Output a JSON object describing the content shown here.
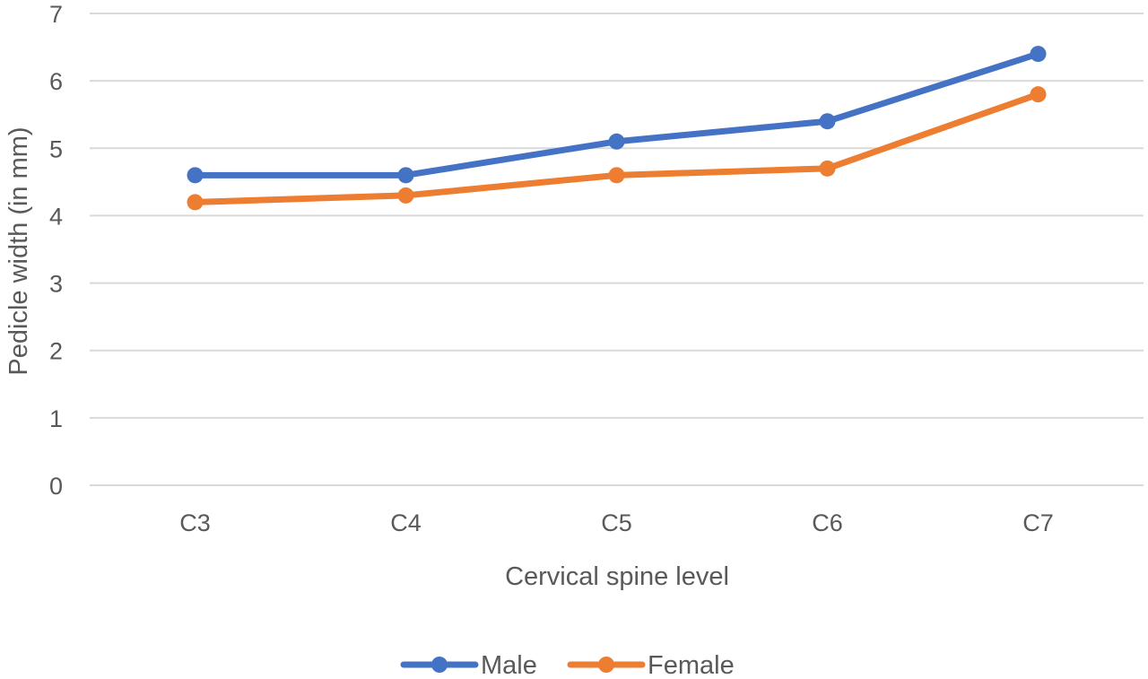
{
  "chart_data": {
    "type": "line",
    "title": "",
    "xlabel": "Cervical spine level",
    "ylabel": "Pedicle width (in mm)",
    "categories": [
      "C3",
      "C4",
      "C5",
      "C6",
      "C7"
    ],
    "ylim": [
      0,
      7
    ],
    "yticks": [
      "0",
      "1",
      "2",
      "3",
      "4",
      "5",
      "6",
      "7"
    ],
    "grid": true,
    "legend_position": "bottom",
    "series": [
      {
        "name": "Male",
        "color": "#4472c4",
        "values": [
          4.6,
          4.6,
          5.1,
          5.4,
          6.4
        ]
      },
      {
        "name": "Female",
        "color": "#ed7d31",
        "values": [
          4.2,
          4.3,
          4.6,
          4.7,
          5.8
        ]
      }
    ]
  }
}
